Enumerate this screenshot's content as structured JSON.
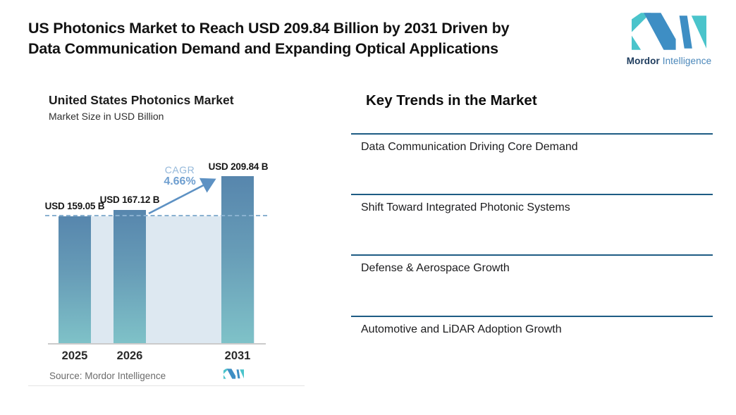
{
  "header": {
    "title_lines": [
      "US Photonics Market to Reach USD 209.84 Billion by 2031 Driven by",
      "Data Communication Demand and Expanding Optical Applications"
    ]
  },
  "brand": {
    "name_bold": "Mordor",
    "name_light": "Intelligence"
  },
  "chart_data": {
    "type": "bar",
    "title": "United States Photonics Market",
    "subtitle": "Market Size in USD Billion",
    "categories": [
      "2025",
      "2026",
      "2031"
    ],
    "values": [
      159.05,
      167.12,
      209.84
    ],
    "value_labels": [
      "USD 159.05 B",
      "USD 167.12 B",
      "USD 209.84 B"
    ],
    "unit": "USD Billion",
    "ylim": [
      0,
      220
    ],
    "grid": "off",
    "annotations": {
      "cagr_label": "CAGR",
      "cagr_value": "4.66%",
      "dashed_reference_level": 159.05
    },
    "source": "Source: Mordor Intelligence"
  },
  "trends": {
    "heading": "Key Trends in the Market",
    "items": [
      "Data Communication Driving Core Demand",
      "Shift Toward Integrated Photonic Systems",
      "Defense & Aerospace Growth",
      "Automotive and LiDAR Adoption Growth"
    ]
  },
  "colors": {
    "bar_gradient_top": "#5786ad",
    "bar_gradient_bottom": "#7fc2c8",
    "plot_fill": "#dde8f1",
    "dashed_line": "#8ab1d0",
    "arrow": "#5d91c3",
    "cagr_text": "#6f9fd0",
    "trend_divider": "#1e5c84",
    "logo_blue": "#3e8ec4",
    "logo_teal": "#4ac4cb",
    "brand_navy": "#1c3a5c",
    "brand_blue": "#4a87ba"
  }
}
